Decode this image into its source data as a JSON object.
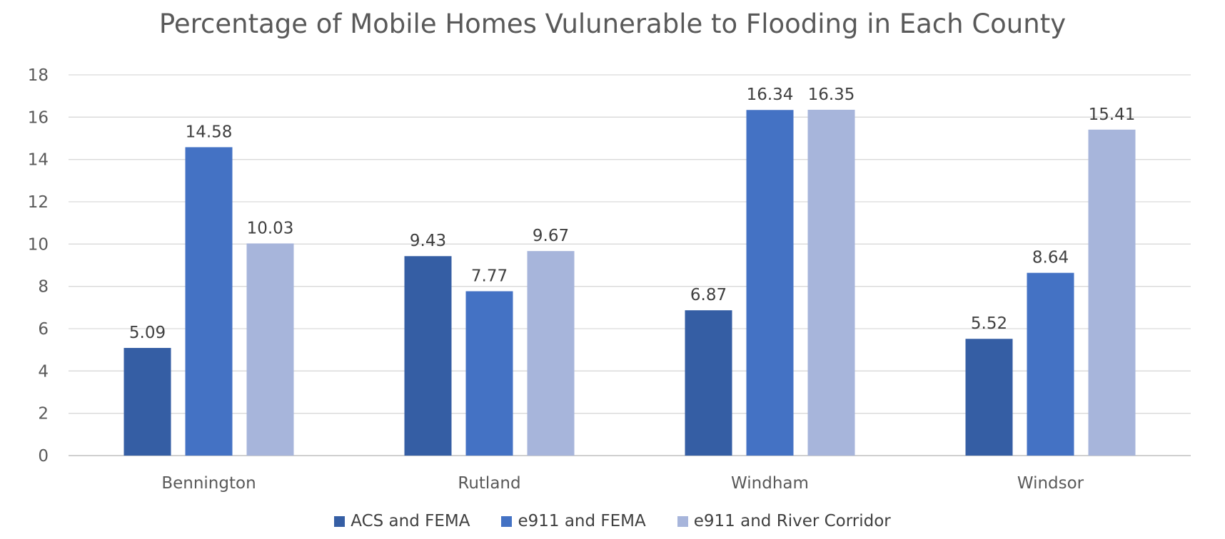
{
  "chart_data": {
    "type": "bar",
    "title": "Percentage of Mobile Homes Vulunerable to Flooding in Each County",
    "categories": [
      "Bennington",
      "Rutland",
      "Windham",
      "Windsor"
    ],
    "series": [
      {
        "name": "ACS and FEMA",
        "color": "#355ea4",
        "values": [
          5.09,
          9.43,
          6.87,
          5.52
        ]
      },
      {
        "name": "e911 and FEMA",
        "color": "#4472c4",
        "values": [
          14.58,
          7.77,
          16.34,
          8.64
        ]
      },
      {
        "name": "e911 and River Corridor",
        "color": "#a7b5db",
        "values": [
          10.03,
          9.67,
          16.35,
          15.41
        ]
      }
    ],
    "ylim": [
      0,
      18
    ],
    "yticks": [
      0,
      2,
      4,
      6,
      8,
      10,
      12,
      14,
      16,
      18
    ],
    "grid": true,
    "legend": "bottom",
    "data_labels": true
  }
}
